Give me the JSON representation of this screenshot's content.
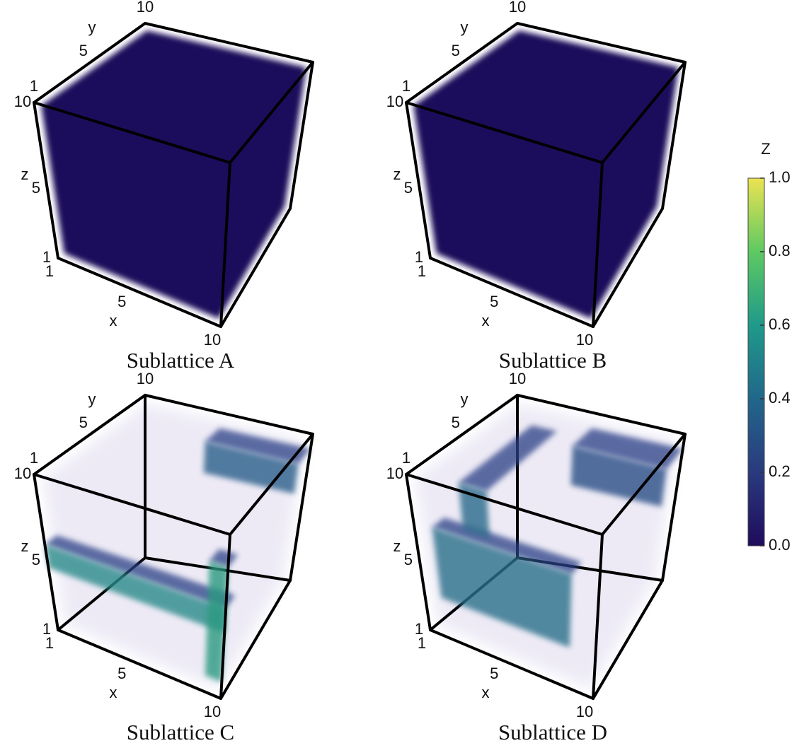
{
  "chart_data": [
    {
      "type": "volume",
      "title": "Sublattice A",
      "xlabel": "x",
      "ylabel": "y",
      "zlabel": "z",
      "xlim": [
        1,
        10
      ],
      "ylim": [
        1,
        10
      ],
      "zlim": [
        1,
        10
      ],
      "xticks": [
        1,
        5,
        10
      ],
      "yticks": [
        1,
        5,
        10
      ],
      "zticks": [
        1,
        5,
        10
      ]
    },
    {
      "type": "volume",
      "title": "Sublattice B",
      "xlabel": "x",
      "ylabel": "y",
      "zlabel": "z",
      "xlim": [
        1,
        10
      ],
      "ylim": [
        1,
        10
      ],
      "zlim": [
        1,
        10
      ],
      "xticks": [
        1,
        5,
        10
      ],
      "yticks": [
        1,
        5,
        10
      ],
      "zticks": [
        1,
        5,
        10
      ]
    },
    {
      "type": "volume",
      "title": "Sublattice C",
      "xlabel": "x",
      "ylabel": "y",
      "zlabel": "z",
      "xlim": [
        1,
        10
      ],
      "ylim": [
        1,
        10
      ],
      "zlim": [
        1,
        10
      ],
      "xticks": [
        1,
        5,
        10
      ],
      "yticks": [
        1,
        5,
        10
      ],
      "zticks": [
        1,
        5,
        10
      ]
    },
    {
      "type": "volume",
      "title": "Sublattice D",
      "xlabel": "x",
      "ylabel": "y",
      "zlabel": "z",
      "xlim": [
        1,
        10
      ],
      "ylim": [
        1,
        10
      ],
      "zlim": [
        1,
        10
      ],
      "xticks": [
        1,
        5,
        10
      ],
      "yticks": [
        1,
        5,
        10
      ],
      "zticks": [
        1,
        5,
        10
      ]
    }
  ],
  "colorbar": {
    "label": "Z",
    "lim": [
      0,
      1
    ],
    "ticks": [
      {
        "value": 0,
        "label": "0.0"
      },
      {
        "value": 0.2,
        "label": "0.2"
      },
      {
        "value": 0.4,
        "label": "0.4"
      },
      {
        "value": 0.6,
        "label": "0.6"
      },
      {
        "value": 0.8,
        "label": "0.8"
      },
      {
        "value": 1,
        "label": "1.0"
      }
    ]
  }
}
